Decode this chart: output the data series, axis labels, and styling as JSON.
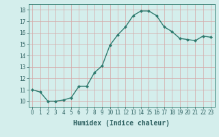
{
  "x": [
    0,
    1,
    2,
    3,
    4,
    5,
    6,
    7,
    8,
    9,
    10,
    11,
    12,
    13,
    14,
    15,
    16,
    17,
    18,
    19,
    20,
    21,
    22,
    23
  ],
  "y": [
    11.0,
    10.8,
    10.0,
    10.0,
    10.1,
    10.3,
    11.3,
    11.3,
    12.5,
    13.1,
    14.9,
    15.8,
    16.5,
    17.5,
    17.9,
    17.9,
    17.5,
    16.5,
    16.1,
    15.5,
    15.4,
    15.3,
    15.7,
    15.6
  ],
  "xlim": [
    -0.5,
    23.5
  ],
  "ylim": [
    9.5,
    18.5
  ],
  "yticks": [
    10,
    11,
    12,
    13,
    14,
    15,
    16,
    17,
    18
  ],
  "xticks": [
    0,
    1,
    2,
    3,
    4,
    5,
    6,
    7,
    8,
    9,
    10,
    11,
    12,
    13,
    14,
    15,
    16,
    17,
    18,
    19,
    20,
    21,
    22,
    23
  ],
  "xlabel": "Humidex (Indice chaleur)",
  "line_color": "#2d7a6e",
  "marker": "D",
  "marker_size": 2.0,
  "bg_color": "#d4eeec",
  "grid_color": "#d4a8a8",
  "tick_label_fontsize": 5.5,
  "xlabel_fontsize": 7.0,
  "line_width": 1.0
}
